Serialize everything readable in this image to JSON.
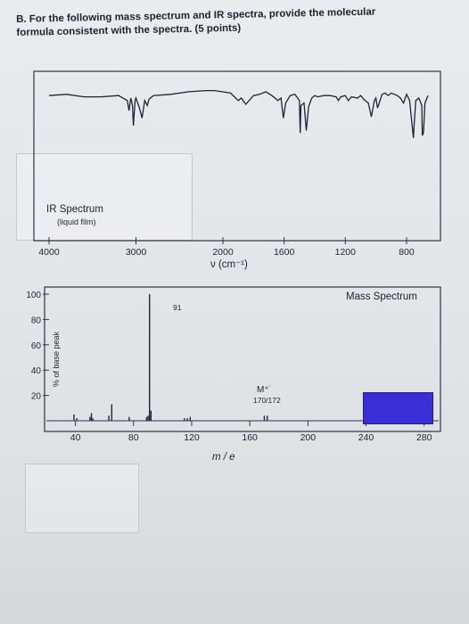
{
  "question": {
    "line1": "B. For the following mass spectrum and IR spectra, provide the molecular",
    "line2": "formula consistent with the spectra. (5 points)"
  },
  "ir": {
    "label": "IR Spectrum",
    "sublabel": "(liquid film)",
    "xlabel": "ν  (cm⁻¹)",
    "tick_labels": [
      "4000",
      "3000",
      "2000",
      "1600",
      "1200",
      "800"
    ]
  },
  "ms": {
    "label": "Mass Spectrum",
    "ylabel": "% of base peak",
    "xlabel": "m / e",
    "peak_label": "91",
    "mplus_label": "M⁺˙",
    "mplus_values": "170/172",
    "block_color": "#3a2fd6"
  },
  "chart_data": [
    {
      "type": "line",
      "title": "IR Spectrum",
      "subtitle": "(liquid film)",
      "xlabel": "ν (cm⁻¹)",
      "ylabel": "",
      "xlim": [
        4000,
        650
      ],
      "xticks": [
        4000,
        3000,
        2000,
        1600,
        1200,
        800
      ],
      "ylim": [
        0,
        100
      ],
      "x": [
        4000,
        3800,
        3600,
        3400,
        3200,
        3100,
        3080,
        3060,
        3040,
        3030,
        3010,
        3000,
        2960,
        2930,
        2900,
        2870,
        2850,
        2800,
        2600,
        2400,
        2200,
        2100,
        2000,
        1950,
        1900,
        1880,
        1850,
        1800,
        1760,
        1720,
        1680,
        1640,
        1620,
        1605,
        1590,
        1560,
        1530,
        1500,
        1495,
        1490,
        1470,
        1455,
        1440,
        1420,
        1400,
        1380,
        1340,
        1300,
        1260,
        1245,
        1230,
        1200,
        1180,
        1160,
        1120,
        1100,
        1080,
        1050,
        1030,
        1010,
        1000,
        990,
        960,
        940,
        920,
        900,
        880,
        860,
        840,
        820,
        800,
        780,
        760,
        755,
        750,
        740,
        720,
        700,
        697,
        690,
        680,
        660
      ],
      "values": [
        92,
        93,
        91,
        91,
        92,
        88,
        80,
        90,
        84,
        68,
        88,
        90,
        82,
        74,
        88,
        84,
        89,
        92,
        93,
        95,
        96,
        96,
        95,
        94,
        88,
        90,
        85,
        92,
        93,
        95,
        92,
        88,
        90,
        74,
        86,
        92,
        93,
        88,
        62,
        84,
        86,
        64,
        83,
        90,
        92,
        91,
        92,
        92,
        91,
        88,
        91,
        92,
        88,
        91,
        90,
        92,
        89,
        86,
        75,
        88,
        90,
        82,
        93,
        94,
        92,
        94,
        93,
        92,
        90,
        86,
        93,
        88,
        64,
        58,
        70,
        88,
        90,
        84,
        60,
        62,
        86,
        92
      ]
    },
    {
      "type": "bar",
      "title": "Mass Spectrum",
      "xlabel": "m / e",
      "ylabel": "% of base peak",
      "xlim": [
        20,
        290
      ],
      "xticks": [
        40,
        80,
        120,
        160,
        200,
        240,
        280
      ],
      "ylim": [
        0,
        100
      ],
      "yticks": [
        20,
        40,
        60,
        80,
        100
      ],
      "x": [
        39,
        41,
        50,
        51,
        52,
        63,
        65,
        77,
        89,
        90,
        91,
        92,
        115,
        117,
        119,
        170,
        172
      ],
      "values": [
        5,
        2,
        3,
        6,
        2,
        4,
        13,
        3,
        3,
        4,
        100,
        8,
        2,
        2,
        3,
        4,
        4
      ],
      "annotations": [
        {
          "text": "91",
          "x": 91
        },
        {
          "text": "M⁺˙ 170/172",
          "x": 171
        }
      ]
    }
  ]
}
